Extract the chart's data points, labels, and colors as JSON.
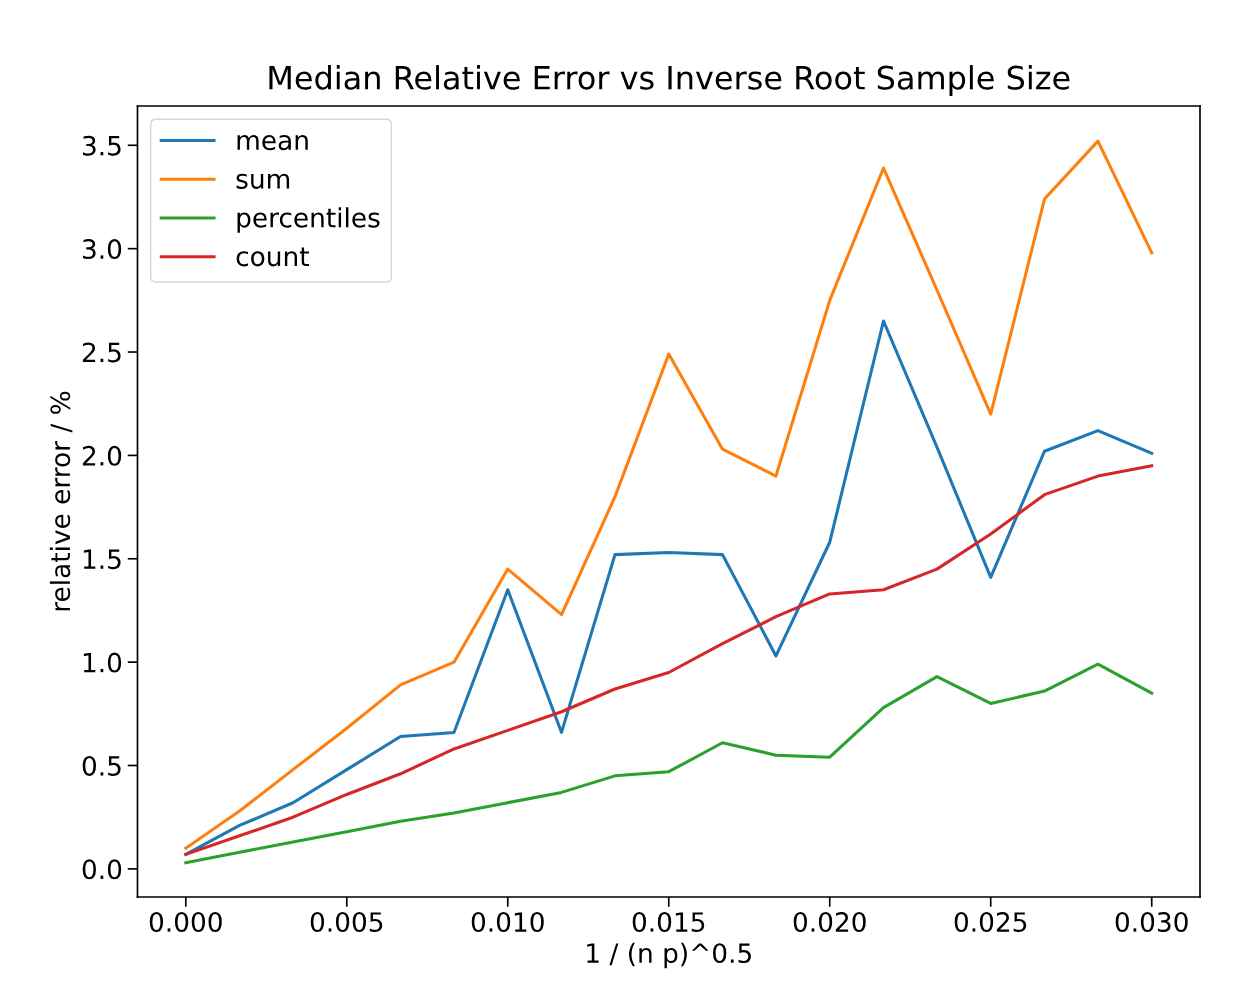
{
  "chart_data": {
    "type": "line",
    "title": "Median Relative Error vs Inverse Root Sample Size",
    "xlabel": "1 / (n p)^0.5",
    "ylabel": "relative error / %",
    "x": [
      0,
      0.00167,
      0.00333,
      0.005,
      0.00667,
      0.00833,
      0.01,
      0.01167,
      0.01333,
      0.015,
      0.01667,
      0.01833,
      0.02,
      0.02167,
      0.02333,
      0.025,
      0.02667,
      0.02833,
      0.03
    ],
    "series": [
      {
        "name": "mean",
        "color": "#1f77b4",
        "values": [
          0.07,
          0.21,
          0.32,
          0.48,
          0.64,
          0.66,
          1.35,
          0.66,
          1.52,
          1.53,
          1.52,
          1.03,
          1.58,
          2.65,
          2.04,
          1.41,
          2.02,
          2.12,
          2.01
        ]
      },
      {
        "name": "sum",
        "color": "#ff7f0e",
        "values": [
          0.1,
          0.28,
          0.48,
          0.68,
          0.89,
          1.0,
          1.45,
          1.23,
          1.8,
          2.49,
          2.03,
          1.9,
          2.75,
          3.39,
          2.8,
          2.2,
          3.24,
          3.52,
          2.98
        ]
      },
      {
        "name": "percentiles",
        "color": "#2ca02c",
        "values": [
          0.03,
          0.08,
          0.13,
          0.18,
          0.23,
          0.27,
          0.32,
          0.37,
          0.45,
          0.47,
          0.61,
          0.55,
          0.54,
          0.78,
          0.93,
          0.8,
          0.86,
          0.99,
          0.85
        ]
      },
      {
        "name": "count",
        "color": "#d62728",
        "values": [
          0.07,
          0.16,
          0.25,
          0.36,
          0.46,
          0.58,
          0.67,
          0.76,
          0.87,
          0.95,
          1.09,
          1.22,
          1.33,
          1.35,
          1.45,
          1.62,
          1.81,
          1.9,
          1.95
        ]
      }
    ],
    "xlim": [
      -0.0015,
      0.0315
    ],
    "ylim": [
      -0.136,
      3.69
    ],
    "xticks": [
      {
        "value": 0,
        "label": "0.000"
      },
      {
        "value": 0.005,
        "label": "0.005"
      },
      {
        "value": 0.01,
        "label": "0.010"
      },
      {
        "value": 0.015,
        "label": "0.015"
      },
      {
        "value": 0.02,
        "label": "0.020"
      },
      {
        "value": 0.025,
        "label": "0.025"
      },
      {
        "value": 0.03,
        "label": "0.030"
      }
    ],
    "yticks": [
      {
        "value": 0,
        "label": "0.0"
      },
      {
        "value": 0.5,
        "label": "0.5"
      },
      {
        "value": 1,
        "label": "1.0"
      },
      {
        "value": 1.5,
        "label": "1.5"
      },
      {
        "value": 2,
        "label": "2.0"
      },
      {
        "value": 2.5,
        "label": "2.5"
      },
      {
        "value": 3,
        "label": "3.0"
      },
      {
        "value": 3.5,
        "label": "3.5"
      }
    ],
    "grid": false,
    "legend": "top left",
    "marker": "none",
    "line_style": "solid"
  }
}
